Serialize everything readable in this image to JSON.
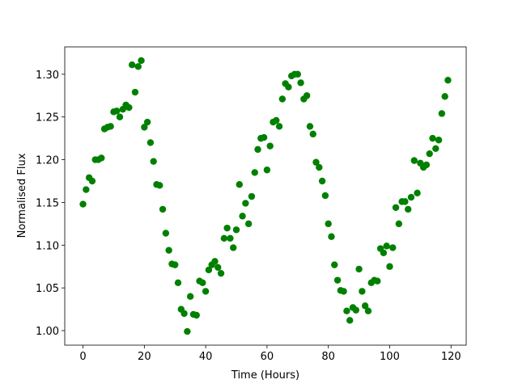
{
  "chart_data": {
    "type": "scatter",
    "x_label": "Time (Hours)",
    "y_label": "Normalised Flux",
    "color": "#008000",
    "x": [
      0,
      1,
      2,
      3,
      4,
      5,
      6,
      7,
      8,
      9,
      10,
      11,
      12,
      13,
      14,
      15,
      16,
      17,
      18,
      19,
      20,
      21,
      22,
      23,
      24,
      25,
      26,
      27,
      28,
      29,
      30,
      31,
      32,
      33,
      34,
      35,
      36,
      37,
      38,
      39,
      40,
      41,
      42,
      43,
      44,
      45,
      46,
      47,
      48,
      49,
      50,
      51,
      52,
      53,
      54,
      55,
      56,
      57,
      58,
      59,
      60,
      61,
      62,
      63,
      64,
      65,
      66,
      67,
      68,
      69,
      70,
      71,
      72,
      73,
      74,
      75,
      76,
      77,
      78,
      79,
      80,
      81,
      82,
      83,
      84,
      85,
      86,
      87,
      88,
      89,
      90,
      91,
      92,
      93,
      94,
      95,
      96,
      97,
      98,
      99,
      100,
      101,
      102,
      103,
      104,
      105,
      106,
      107,
      108,
      109,
      110,
      111,
      112,
      113,
      114,
      115,
      116,
      117,
      118,
      119
    ],
    "values": [
      1.148,
      1.165,
      1.179,
      1.175,
      1.2,
      1.2,
      1.202,
      1.236,
      1.238,
      1.239,
      1.256,
      1.257,
      1.25,
      1.259,
      1.264,
      1.261,
      1.311,
      1.279,
      1.309,
      1.316,
      1.238,
      1.244,
      1.22,
      1.198,
      1.171,
      1.17,
      1.142,
      1.114,
      1.094,
      1.078,
      1.077,
      1.056,
      1.025,
      1.02,
      0.999,
      1.04,
      1.019,
      1.018,
      1.058,
      1.056,
      1.046,
      1.071,
      1.077,
      1.081,
      1.074,
      1.067,
      1.108,
      1.12,
      1.108,
      1.097,
      1.118,
      1.171,
      1.134,
      1.149,
      1.125,
      1.157,
      1.185,
      1.212,
      1.225,
      1.226,
      1.188,
      1.216,
      1.244,
      1.246,
      1.239,
      1.271,
      1.289,
      1.285,
      1.298,
      1.3,
      1.3,
      1.29,
      1.271,
      1.275,
      1.239,
      1.23,
      1.197,
      1.191,
      1.175,
      1.158,
      1.125,
      1.11,
      1.077,
      1.059,
      1.047,
      1.046,
      1.023,
      1.012,
      1.027,
      1.024,
      1.072,
      1.046,
      1.029,
      1.023,
      1.056,
      1.059,
      1.058,
      1.096,
      1.091,
      1.099,
      1.075,
      1.097,
      1.144,
      1.125,
      1.151,
      1.151,
      1.142,
      1.156,
      1.199,
      1.161,
      1.196,
      1.191,
      1.194,
      1.207,
      1.225,
      1.213,
      1.223,
      1.254,
      1.274,
      1.293
    ],
    "xlim": [
      -5.95,
      124.95
    ],
    "xticks": [
      0,
      20,
      40,
      60,
      80,
      100,
      120
    ],
    "ylim": [
      0.983,
      1.332
    ],
    "yticks": [
      {
        "value": 1.0,
        "label": "1.00"
      },
      {
        "value": 1.05,
        "label": "1.05"
      },
      {
        "value": 1.1,
        "label": "1.10"
      },
      {
        "value": 1.15,
        "label": "1.15"
      },
      {
        "value": 1.2,
        "label": "1.20"
      },
      {
        "value": 1.25,
        "label": "1.25"
      },
      {
        "value": 1.3,
        "label": "1.30"
      }
    ]
  }
}
